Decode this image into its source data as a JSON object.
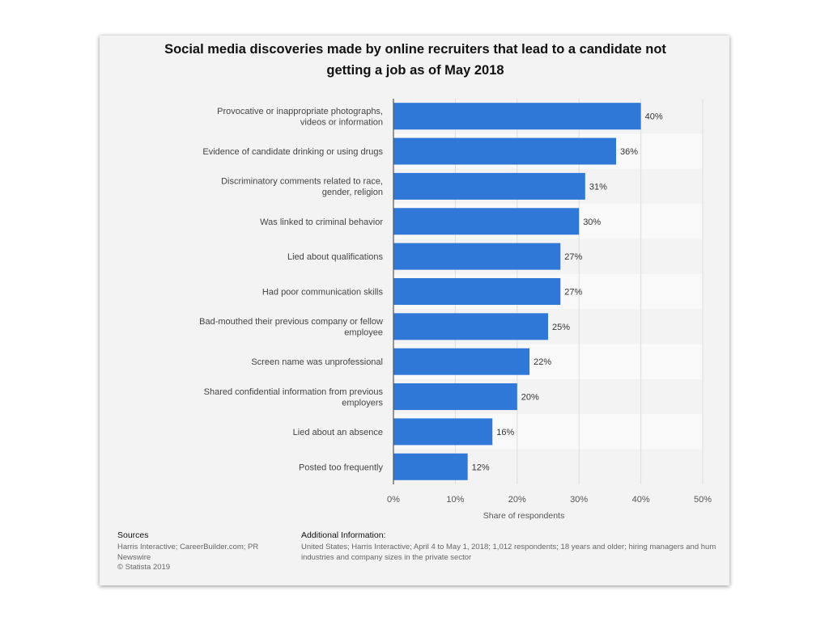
{
  "title_line1": "Social media discoveries made by online recruiters that lead to a candidate not",
  "title_line2": "getting a job as of May 2018",
  "chart_data": {
    "type": "bar",
    "orientation": "horizontal",
    "categories": [
      [
        "Provocative or inappropriate photographs,",
        "videos or information"
      ],
      [
        "Evidence of candidate drinking or using drugs"
      ],
      [
        "Discriminatory comments related to race,",
        "gender, religion"
      ],
      [
        "Was linked to criminal behavior"
      ],
      [
        "Lied about qualifications"
      ],
      [
        "Had poor communication skills"
      ],
      [
        "Bad-mouthed their previous company or fellow",
        "employee"
      ],
      [
        "Screen name was unprofessional"
      ],
      [
        "Shared confidential information from previous",
        "employers"
      ],
      [
        "Lied about an absence"
      ],
      [
        "Posted too frequently"
      ]
    ],
    "values": [
      40,
      36,
      31,
      30,
      27,
      27,
      25,
      22,
      20,
      16,
      12
    ],
    "data_labels": [
      "40%",
      "36%",
      "31%",
      "30%",
      "27%",
      "27%",
      "25%",
      "22%",
      "20%",
      "16%",
      "12%"
    ],
    "xlabel": "Share of respondents",
    "xlim": [
      0,
      50
    ],
    "xticks": [
      "0%",
      "10%",
      "20%",
      "30%",
      "40%",
      "50%"
    ],
    "grid": true,
    "bar_color": "#2f78d8"
  },
  "footer": {
    "sources_heading": "Sources",
    "sources_line1": "Harris Interactive; CareerBuilder.com; PR",
    "sources_line2": "Newswire",
    "copyright": "© Statista 2019",
    "additional_heading": "Additional Information:",
    "additional_line1": "United States; Harris Interactive; April 4 to May 1, 2018; 1,012 respondents; 18 years and older; hiring managers and hum",
    "additional_line2": "industries and company sizes in the private sector"
  }
}
